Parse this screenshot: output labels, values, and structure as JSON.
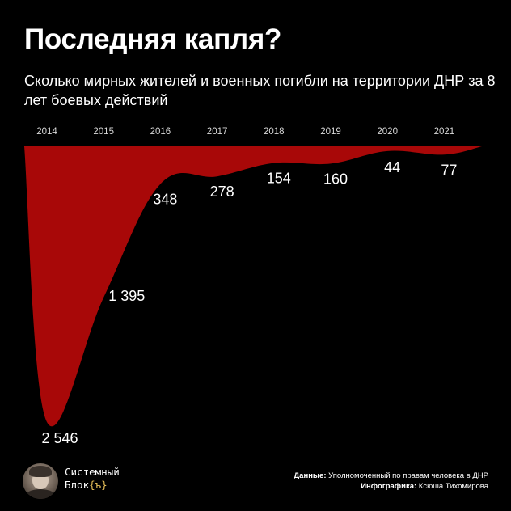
{
  "title": "Последняя капля?",
  "subtitle": "Сколько мирных жителей и военных погибли на территории ДНР за 8 лет боевых действий",
  "chart_data": {
    "type": "area",
    "categories": [
      "2014",
      "2015",
      "2016",
      "2017",
      "2018",
      "2019",
      "2020",
      "2021"
    ],
    "values": [
      2546,
      1395,
      348,
      278,
      154,
      160,
      44,
      77
    ],
    "value_labels": [
      "2 546",
      "1 395",
      "348",
      "278",
      "154",
      "160",
      "44",
      "77"
    ],
    "title": "Последняя капля?",
    "ylim": [
      0,
      2546
    ],
    "orientation": "values drawn downward from baseline",
    "grid": false,
    "legend": "none",
    "fill_color": "#a80808"
  },
  "brand": {
    "line1": "Системный",
    "line2_text": "Блок",
    "line2_accent": "{ъ}"
  },
  "credits": {
    "data_label": "Данные:",
    "data_value": " Уполномоченный по правам человека в ДНР",
    "infographic_label": "Инфографика:",
    "infographic_value": " Ксюша Тихомирова"
  },
  "colors": {
    "background": "#000000",
    "area": "#a80808",
    "text": "#ffffff",
    "tick": "#d9d9d9",
    "accent": "#e8c15a"
  }
}
